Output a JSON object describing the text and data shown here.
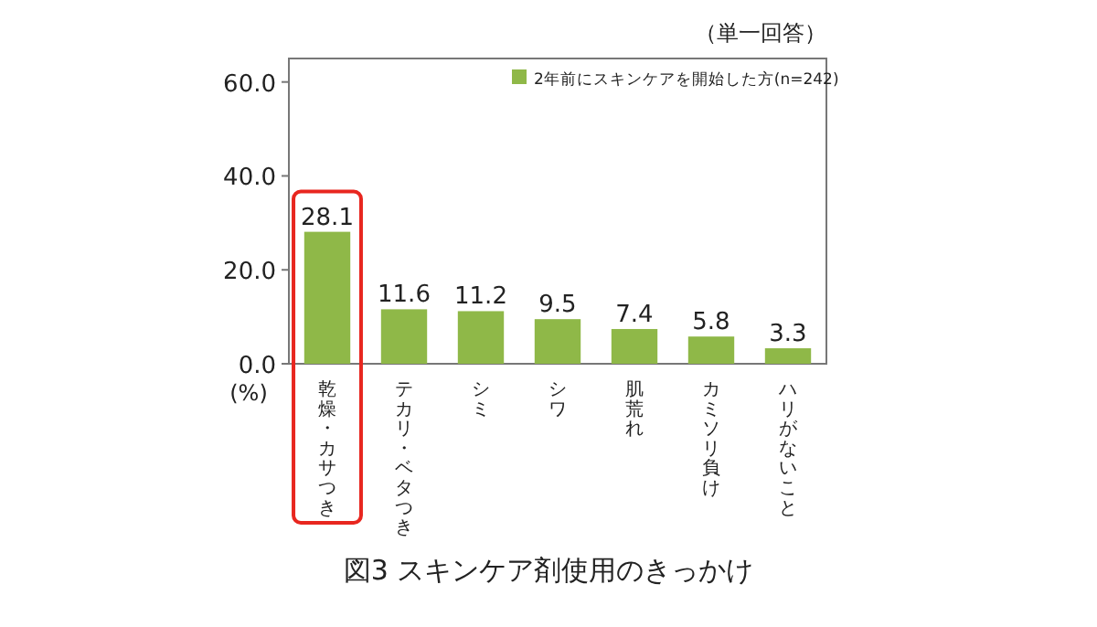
{
  "chart_data": {
    "type": "bar",
    "title": "図3  スキンケア剤使用のきっかけ",
    "subtitle": "（単一回答）",
    "ylabel": "(%)",
    "categories": [
      "乾燥・カサつき",
      "テカリ・ベタつき",
      "シミ",
      "シワ",
      "肌荒れ",
      "カミソリ負け",
      "ハリがないこと"
    ],
    "series": [
      {
        "name": "2年前にスキンケアを開始した方(n=242)",
        "color": "#8fb848",
        "values": [
          28.1,
          11.6,
          11.2,
          9.5,
          7.4,
          5.8,
          3.3
        ]
      }
    ],
    "ylim": [
      0,
      65
    ],
    "yticks": [
      {
        "value": 0,
        "label": "0.0"
      },
      {
        "value": 20,
        "label": "20.0"
      },
      {
        "value": 40,
        "label": "40.0"
      },
      {
        "value": 60,
        "label": "60.0"
      }
    ],
    "data_labels": true,
    "legend": "top right",
    "grid": false
  }
}
